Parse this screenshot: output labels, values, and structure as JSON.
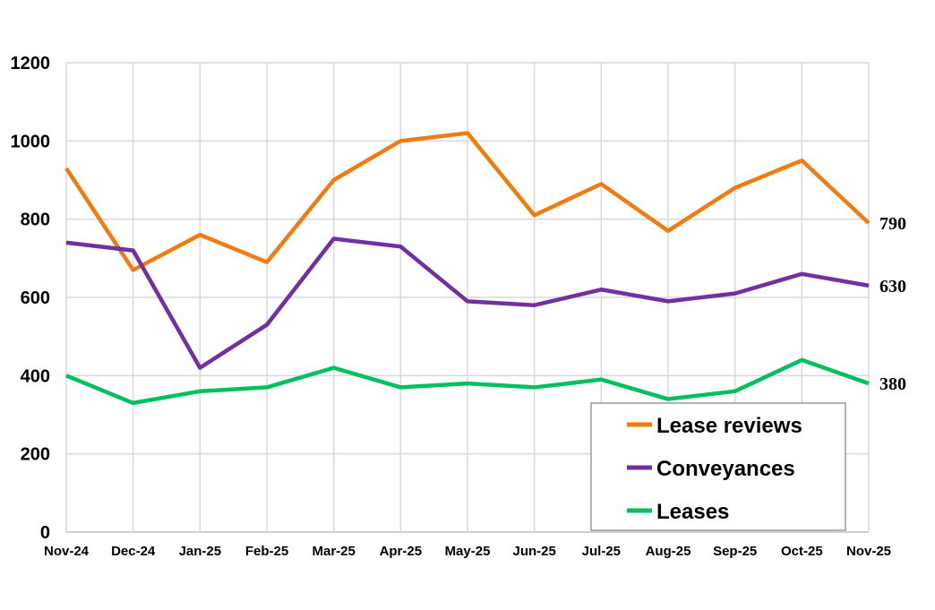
{
  "chart_data": {
    "type": "line",
    "categories": [
      "Nov-24",
      "Dec-24",
      "Jan-25",
      "Feb-25",
      "Mar-25",
      "Apr-25",
      "May-25",
      "Jun-25",
      "Jul-25",
      "Aug-25",
      "Sep-25",
      "Oct-25",
      "Nov-25"
    ],
    "series": [
      {
        "name": "Lease reviews",
        "color": "#F07C10",
        "values": [
          930,
          670,
          760,
          690,
          900,
          1000,
          1020,
          810,
          890,
          770,
          880,
          950,
          790
        ],
        "end_label": "790"
      },
      {
        "name": "Conveyances",
        "color": "#7030A0",
        "values": [
          740,
          720,
          420,
          530,
          750,
          730,
          590,
          580,
          620,
          590,
          610,
          660,
          630
        ],
        "end_label": "630"
      },
      {
        "name": "Leases",
        "color": "#00C060",
        "values": [
          400,
          330,
          360,
          370,
          420,
          370,
          380,
          370,
          390,
          340,
          360,
          440,
          380
        ],
        "end_label": "380"
      }
    ],
    "yticks": [
      "0",
      "200",
      "400",
      "600",
      "800",
      "1000",
      "1200"
    ],
    "ylim": [
      0,
      1200
    ],
    "grid": "vertical and horizontal",
    "legend": "bottom-right",
    "title": "",
    "xlabel": "",
    "ylabel": ""
  }
}
